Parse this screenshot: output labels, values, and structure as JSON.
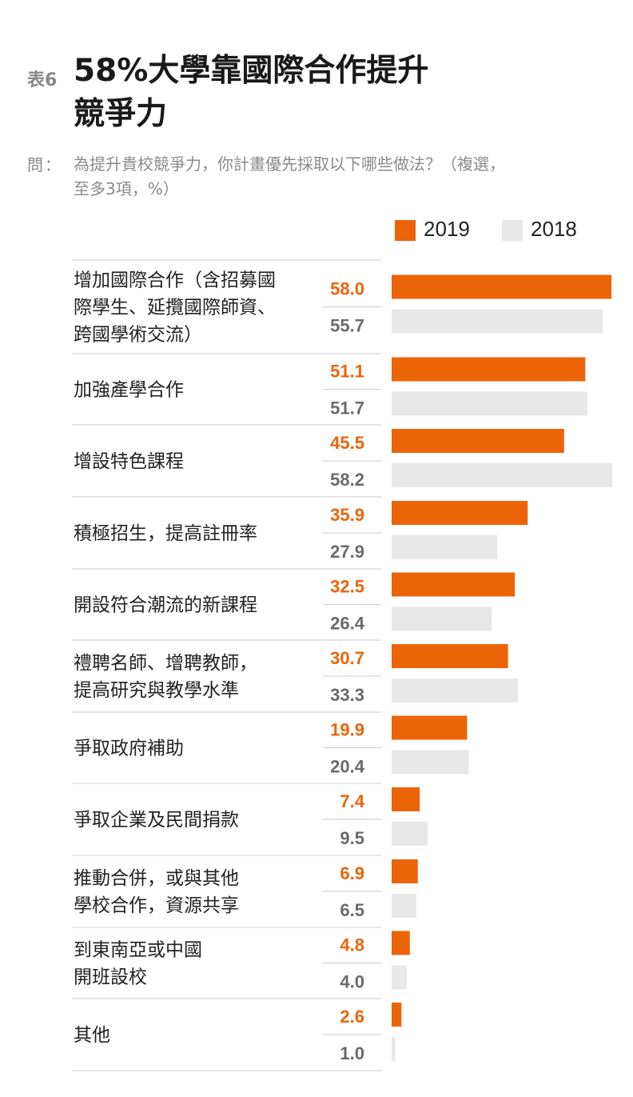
{
  "header": {
    "tag": "表6",
    "title_lines": [
      "58%大學靠國際合作提升",
      "競爭力"
    ],
    "question_prefix": "問：",
    "question_lines": [
      "為提升貴校競爭力，你計畫優先採取以下哪些做法？（複選，",
      "至多3項，%）"
    ]
  },
  "colors": {
    "series_2019": "#ec6408",
    "series_2018": "#e8e8e8"
  },
  "chart_data": {
    "type": "bar",
    "title": "58%大學靠國際合作提升競爭力",
    "xlabel": "",
    "ylabel": "",
    "unit": "%",
    "xlim": [
      0,
      58.2
    ],
    "legend_position": "top-right",
    "categories": [
      [
        "增加國際合作（含招募國",
        "際學生、延攬國際師資、",
        "跨國學術交流）"
      ],
      [
        "加強產學合作"
      ],
      [
        "增設特色課程"
      ],
      [
        "積極招生，提高註冊率"
      ],
      [
        "開設符合潮流的新課程"
      ],
      [
        "禮聘名師、增聘教師，",
        "提高研究與教學水準"
      ],
      [
        "爭取政府補助"
      ],
      [
        "爭取企業及民間捐款"
      ],
      [
        "推動合併，或與其他",
        "學校合作，資源共享"
      ],
      [
        "到東南亞或中國",
        "開班設校"
      ],
      [
        "其他"
      ]
    ],
    "series": [
      {
        "name": "2019",
        "values": [
          58.0,
          51.1,
          45.5,
          35.9,
          32.5,
          30.7,
          19.9,
          7.4,
          6.9,
          4.8,
          2.6
        ],
        "labels": [
          "58.0",
          "51.1",
          "45.5",
          "35.9",
          "32.5",
          "30.7",
          "19.9",
          "7.4",
          "6.9",
          "4.8",
          "2.6"
        ]
      },
      {
        "name": "2018",
        "values": [
          55.7,
          51.7,
          58.2,
          27.9,
          26.4,
          33.3,
          20.4,
          9.5,
          6.5,
          4.0,
          1.0
        ],
        "labels": [
          "55.7",
          "51.7",
          "58.2",
          "27.9",
          "26.4",
          "33.3",
          "20.4",
          "9.5",
          "6.5",
          "4.0",
          "1.0"
        ]
      }
    ]
  }
}
